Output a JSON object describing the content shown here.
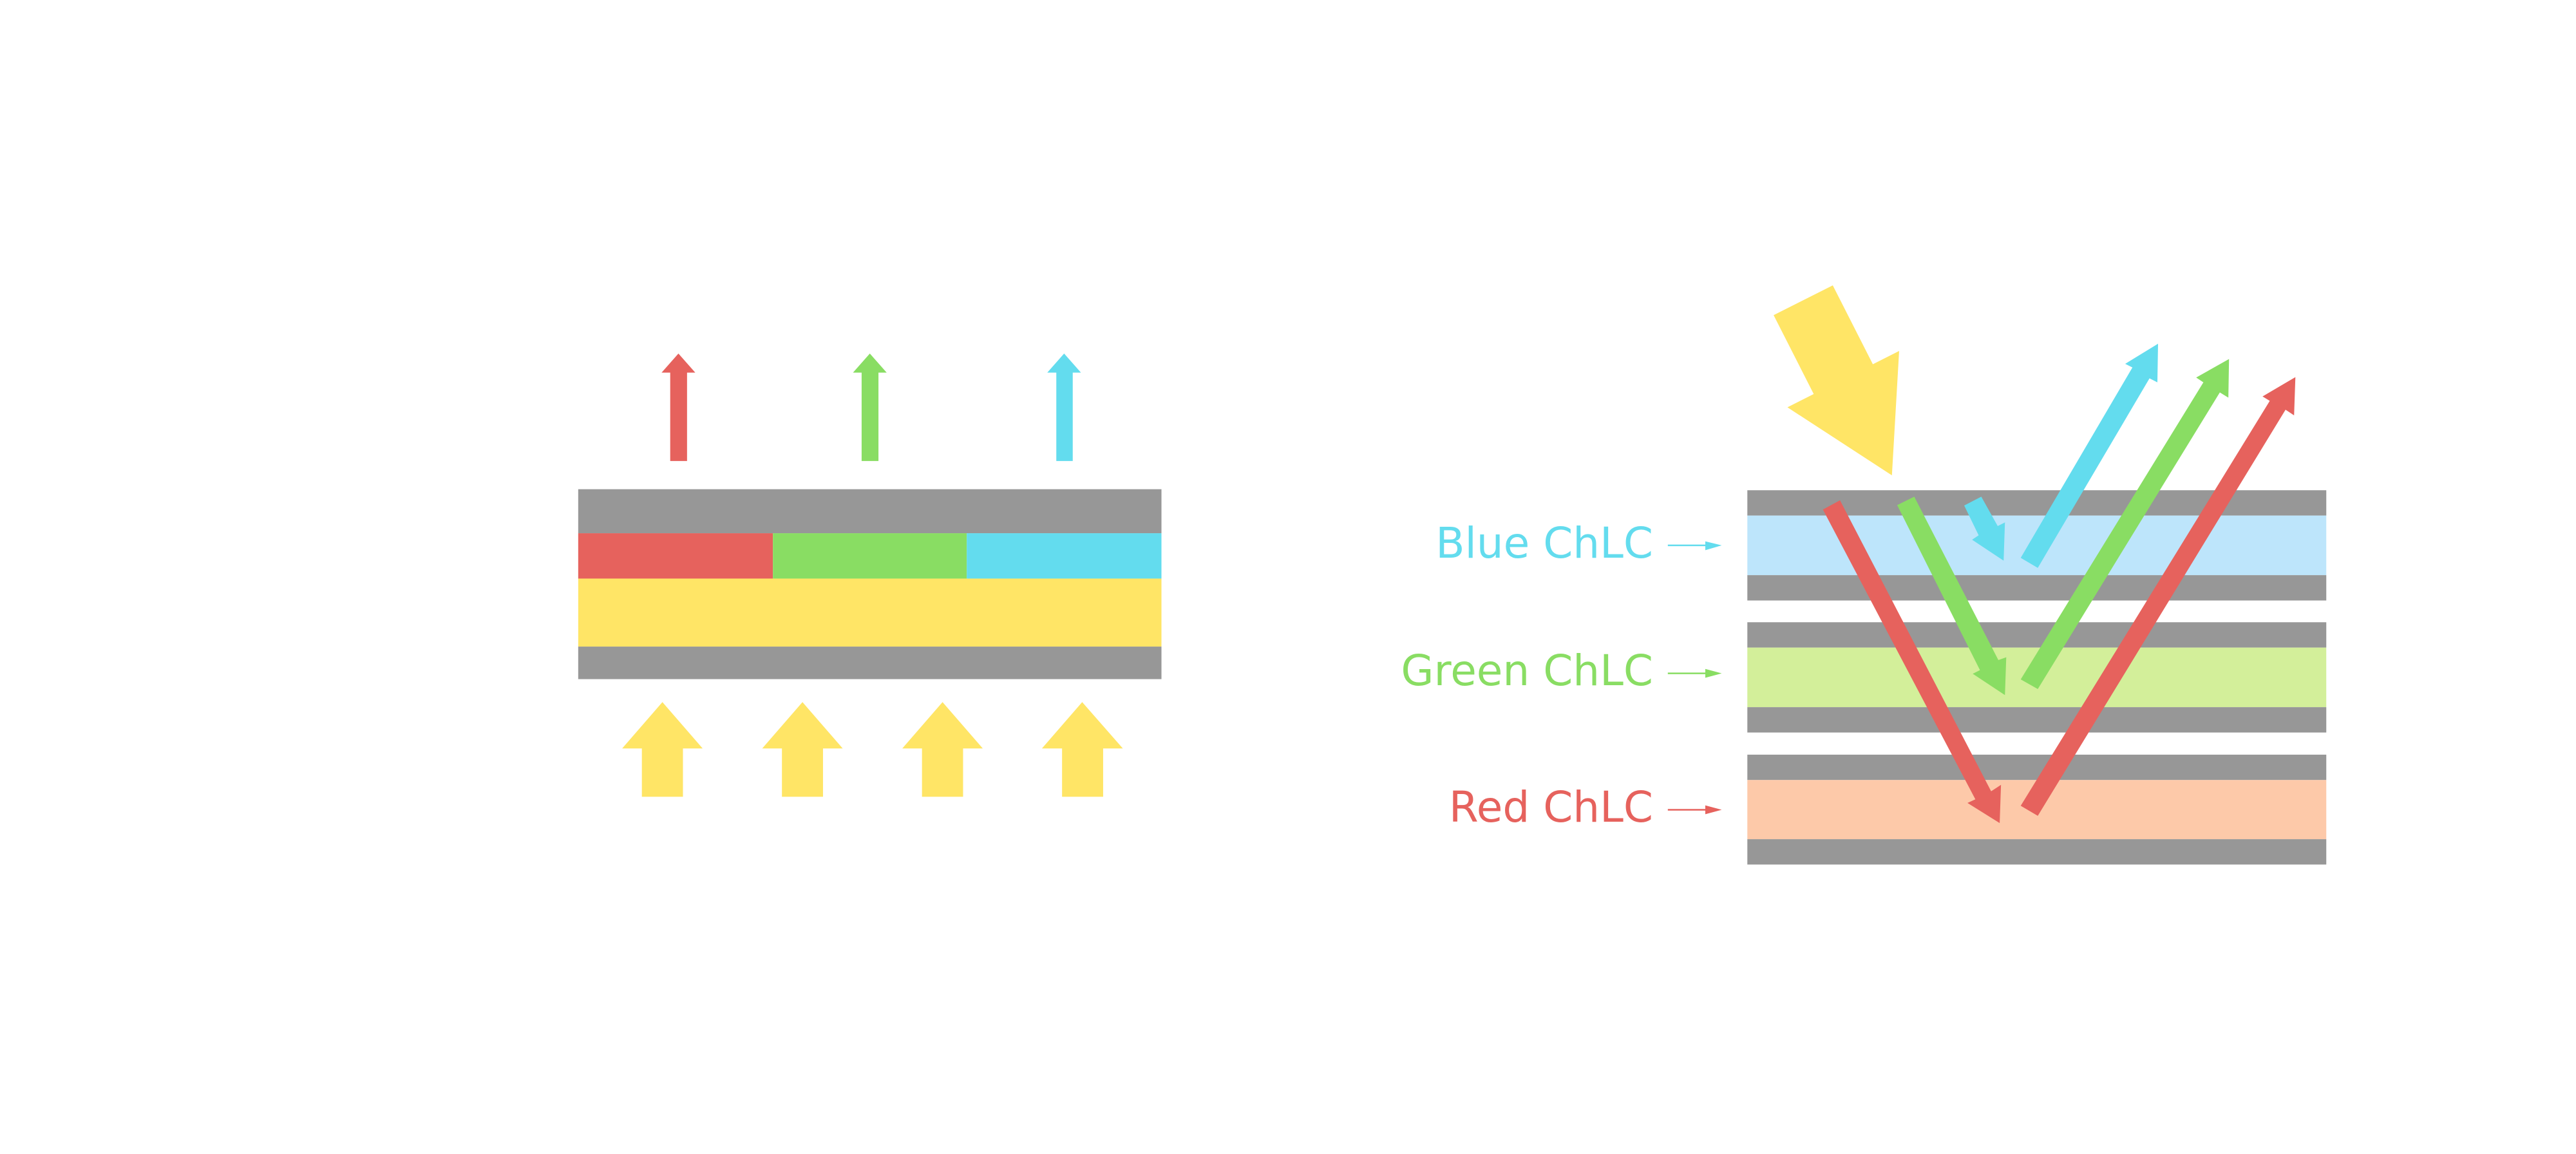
{
  "colors": {
    "gray": "#979797",
    "red": "#e6625d",
    "green": "#89dd63",
    "cyan": "#63dcee",
    "yellow": "#ffe566",
    "blue_layer": "#bde5fb",
    "green_layer": "#d3ef9a",
    "red_layer": "#fdc9a9"
  },
  "right_diagram": {
    "labels": {
      "blue": "Blue ChLC",
      "green": "Green ChLC",
      "red": "Red ChLC"
    }
  }
}
